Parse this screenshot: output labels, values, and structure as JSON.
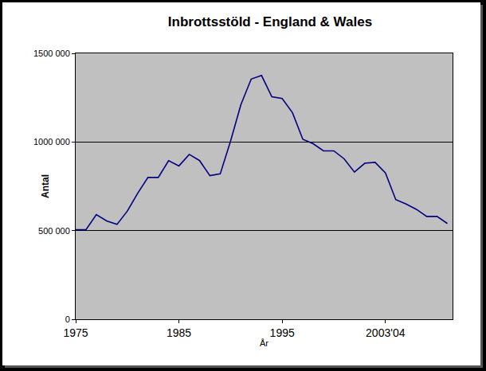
{
  "chart_data": {
    "type": "line",
    "title": "Inbrottsstöld - England & Wales",
    "x_label": "År",
    "y_label": "Antal",
    "categories": [
      "1975",
      null,
      null,
      null,
      null,
      null,
      null,
      null,
      null,
      null,
      "1985",
      null,
      null,
      null,
      null,
      null,
      null,
      null,
      null,
      null,
      "1995",
      null,
      null,
      null,
      null,
      null,
      null,
      null,
      null,
      null,
      "2003'04",
      null,
      null,
      null,
      null,
      null,
      null
    ],
    "values": [
      505000,
      505000,
      590000,
      555000,
      535000,
      610000,
      710000,
      800000,
      800000,
      895000,
      865000,
      930000,
      895000,
      810000,
      820000,
      1005000,
      1210000,
      1355000,
      1375000,
      1255000,
      1245000,
      1165000,
      1015000,
      990000,
      950000,
      950000,
      905000,
      830000,
      880000,
      885000,
      825000,
      675000,
      650000,
      620000,
      580000,
      580000,
      540000
    ],
    "color": "#000080",
    "ylim": [
      0,
      1500000
    ],
    "yticks": [
      0,
      {
        "value": 500000,
        "label": "500 000"
      },
      {
        "value": 1000000,
        "label": "1000 000"
      },
      {
        "value": 1500000,
        "label": "1500 000"
      }
    ],
    "grid": true
  }
}
